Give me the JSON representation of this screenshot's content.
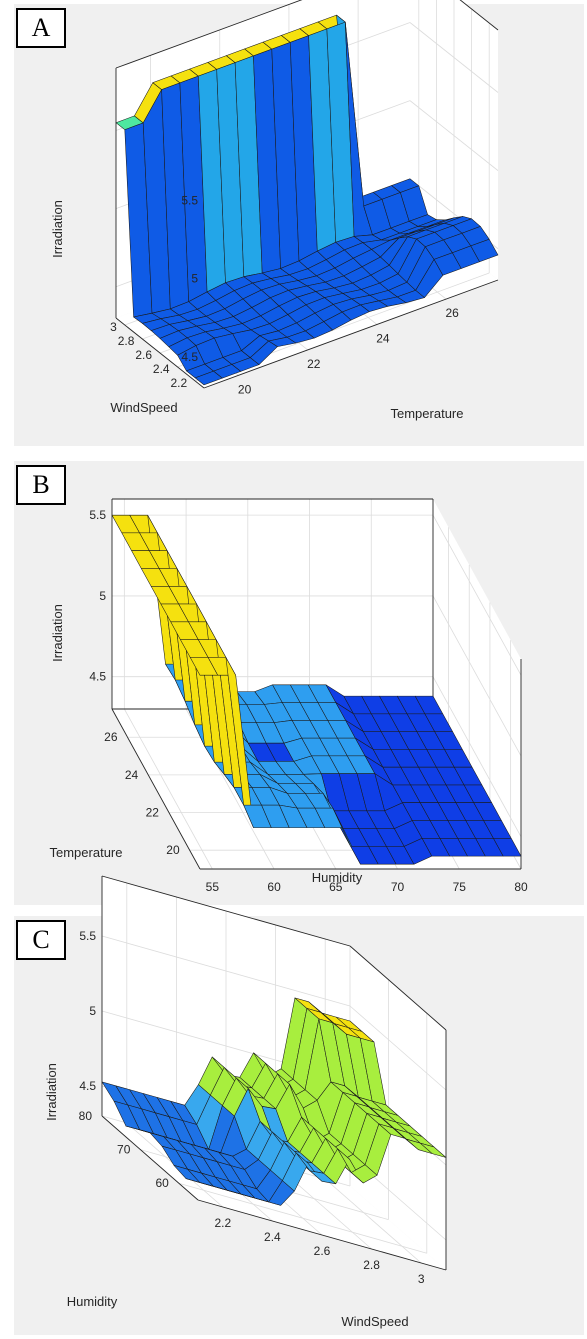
{
  "chart_data": [
    {
      "type": "surface",
      "panel_label": "A",
      "x_label": "Temperature",
      "y_label": "WindSpeed",
      "z_label": "Irradiation",
      "x_ticks": [
        "20",
        "22",
        "24",
        "26"
      ],
      "y_ticks": [
        "2.2",
        "2.4",
        "2.6",
        "2.8",
        "3"
      ],
      "z_ticks": [
        "4.5",
        "5",
        "5.5"
      ],
      "xlim": [
        19,
        27.5
      ],
      "ylim": [
        2.1,
        3.1
      ],
      "zlim": [
        4.3,
        5.9
      ],
      "grid": true,
      "colors": [
        "#0f5be6",
        "#23a6e8",
        "#4ee8a0",
        "#f5e10f"
      ]
    },
    {
      "type": "surface",
      "panel_label": "B",
      "x_label": "Humidity",
      "y_label": "Temperature",
      "z_label": "Irradiation",
      "x_ticks": [
        "55",
        "60",
        "65",
        "70",
        "75",
        "80"
      ],
      "y_ticks": [
        "20",
        "22",
        "24",
        "26"
      ],
      "z_ticks": [
        "4.5",
        "5",
        "5.5"
      ],
      "xlim": [
        54,
        80
      ],
      "ylim": [
        19,
        27.5
      ],
      "zlim": [
        4.3,
        5.6
      ],
      "grid": true,
      "colors": [
        "#0f3ee6",
        "#2e9ef0",
        "#f5e10f"
      ]
    },
    {
      "type": "surface",
      "panel_label": "C",
      "x_label": "WindSpeed",
      "y_label": "Humidity",
      "z_label": "Irradiation",
      "x_ticks": [
        "2.2",
        "2.4",
        "2.6",
        "2.8",
        "3"
      ],
      "y_ticks": [
        "60",
        "70",
        "80"
      ],
      "z_ticks": [
        "4.5",
        "5",
        "5.5"
      ],
      "xlim": [
        2.1,
        3.1
      ],
      "ylim": [
        55,
        80
      ],
      "zlim": [
        4.3,
        5.9
      ],
      "grid": true,
      "colors": [
        "#1e72e6",
        "#38a8ee",
        "#a8ee3e",
        "#f5e10f"
      ]
    }
  ]
}
